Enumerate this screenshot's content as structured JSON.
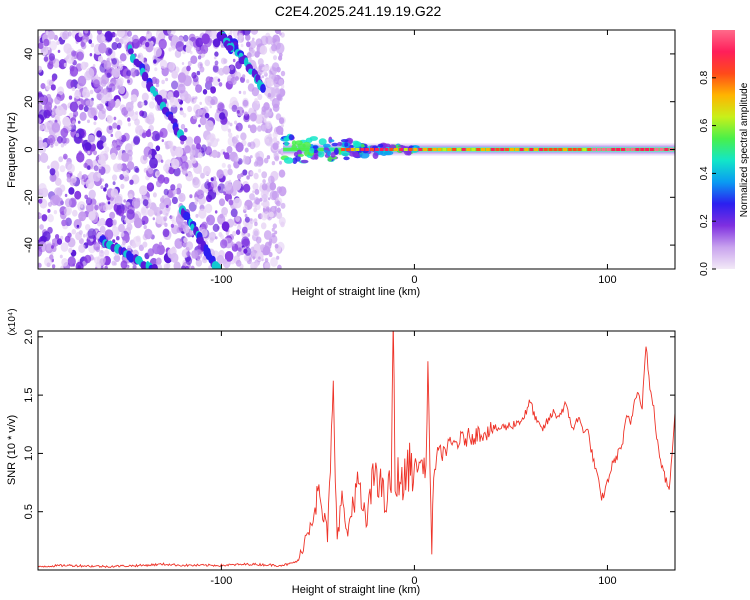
{
  "chart_data": [
    {
      "type": "heatmap",
      "title": "C2E4.2025.241.19.19.G22",
      "xlabel": "Height of straight line (km)",
      "ylabel": "Frequency (Hz)",
      "xlim": [
        -195,
        135
      ],
      "ylim": [
        -50,
        50
      ],
      "xticks": [
        -100,
        0,
        100
      ],
      "xtick_labels": [
        "-100",
        "0",
        "100"
      ],
      "yticks": [
        -40,
        -20,
        0,
        20,
        40
      ],
      "ytick_labels": [
        "-40",
        "-20",
        "0",
        "20",
        "40"
      ],
      "noise_region_x": [
        -195,
        -68
      ],
      "signal_line": {
        "frequency_hz": 0,
        "x_start": -68,
        "x_end": 135
      },
      "streaks": [
        {
          "x": [
            -96,
            -78
          ],
          "y": [
            47,
            25
          ]
        },
        {
          "x": [
            -148,
            -120
          ],
          "y": [
            42,
            5
          ]
        },
        {
          "x": [
            -120,
            -102
          ],
          "y": [
            -25,
            -50
          ]
        },
        {
          "x": [
            -162,
            -135
          ],
          "y": [
            -38,
            -50
          ]
        },
        {
          "x": [
            -100,
            -95
          ],
          "y": [
            48,
            42
          ]
        }
      ],
      "colorbar": {
        "label": "Normalized spectral amplitude",
        "range": [
          0,
          1
        ],
        "ticks": [
          0.0,
          0.2,
          0.4,
          0.6,
          0.8
        ],
        "tick_labels": [
          "0.0",
          "0.2",
          "0.4",
          "0.6",
          "0.8"
        ],
        "colors": [
          "#f3eaf7",
          "#c9a3ee",
          "#7f2fe0",
          "#2b1ff0",
          "#0a9bf2",
          "#12e6c8",
          "#49f04a",
          "#c8f01a",
          "#ffb400",
          "#ff4a1a",
          "#ff1e5a",
          "#ff6a8a"
        ]
      }
    },
    {
      "type": "line",
      "xlabel": "Height of straight line (km)",
      "ylabel": "SNR (10 * v/v)",
      "scale_label": "(x10⁴)",
      "xlim": [
        -195,
        135
      ],
      "ylim": [
        0,
        2.05
      ],
      "xticks": [
        -100,
        0,
        100
      ],
      "xtick_labels": [
        "-100",
        "0",
        "100"
      ],
      "yticks": [
        0.5,
        1.0,
        1.5,
        2.0
      ],
      "ytick_labels": [
        "0.5",
        "1.0",
        "1.5",
        "2.0"
      ],
      "color": "#ee3328",
      "series": [
        {
          "name": "SNR",
          "x": [
            -195,
            -180,
            -160,
            -140,
            -130,
            -120,
            -100,
            -85,
            -70,
            -65,
            -60,
            -55,
            -50,
            -45,
            -42,
            -40,
            -37,
            -35,
            -30,
            -25,
            -20,
            -15,
            -12,
            -11,
            -10,
            -8,
            -6,
            -4,
            -2,
            0,
            2,
            4,
            6,
            7,
            8,
            9,
            10,
            12,
            15,
            20,
            25,
            30,
            35,
            40,
            45,
            50,
            55,
            58,
            60,
            63,
            66,
            70,
            72,
            75,
            78,
            82,
            85,
            87,
            90,
            92,
            95,
            97,
            100,
            102,
            105,
            108,
            110,
            112,
            114,
            116,
            118,
            120,
            122,
            124,
            126,
            128,
            130,
            132,
            135
          ],
          "y": [
            0.03,
            0.04,
            0.03,
            0.04,
            0.05,
            0.04,
            0.04,
            0.05,
            0.04,
            0.05,
            0.08,
            0.35,
            0.65,
            0.3,
            1.4,
            0.35,
            0.62,
            0.28,
            0.75,
            0.4,
            0.9,
            0.55,
            0.78,
            2.05,
            0.65,
            0.85,
            0.7,
            0.85,
            0.9,
            0.88,
            0.9,
            0.92,
            0.85,
            1.82,
            0.9,
            0.12,
            0.85,
            0.98,
            1.02,
            1.08,
            1.12,
            1.15,
            1.18,
            1.2,
            1.22,
            1.24,
            1.28,
            1.35,
            1.45,
            1.28,
            1.2,
            1.3,
            1.35,
            1.32,
            1.42,
            1.22,
            1.3,
            1.22,
            1.18,
            1.0,
            0.78,
            0.6,
            0.75,
            0.88,
            0.98,
            1.1,
            1.32,
            1.25,
            1.45,
            1.55,
            1.4,
            1.95,
            1.55,
            1.38,
            1.08,
            0.9,
            0.78,
            0.7,
            1.35
          ]
        }
      ]
    }
  ]
}
